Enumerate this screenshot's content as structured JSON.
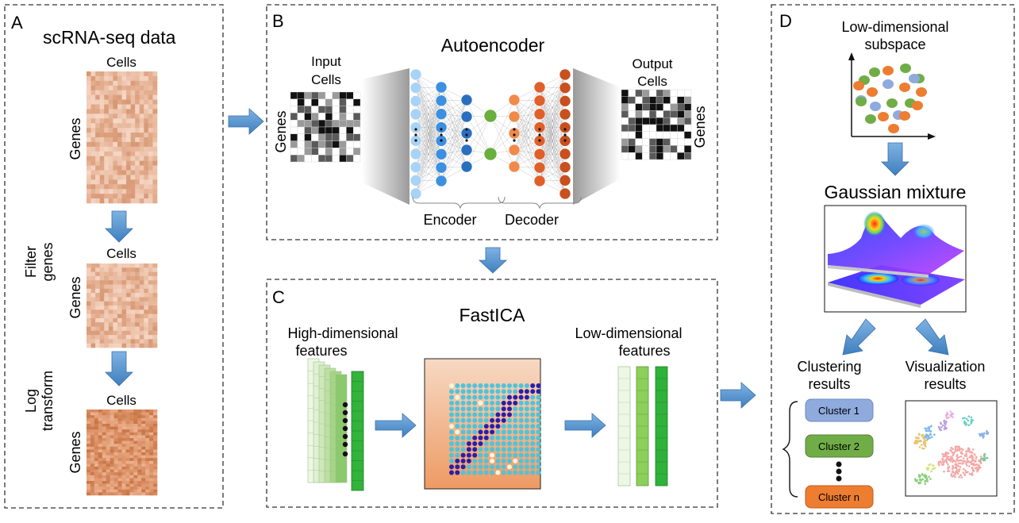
{
  "panelA": {
    "letter": "A",
    "title": "scRNA-seq data",
    "cells_label_1": "Cells",
    "cells_label_2": "Cells",
    "cells_label_3": "Cells",
    "genes_label_1": "Genes",
    "genes_label_2": "Genes",
    "genes_label_3": "Genes",
    "step1_line1": "Filter",
    "step1_line2": "genes",
    "step2_line1": "Log",
    "step2_line2": "transform"
  },
  "panelB": {
    "letter": "B",
    "title": "Autoencoder",
    "input_line1": "Input",
    "input_line2": "Cells",
    "output_line1": "Output",
    "output_line2": "Cells",
    "genes_left": "Genes",
    "genes_right": "Genes",
    "encoder": "Encoder",
    "decoder": "Decoder"
  },
  "panelC": {
    "letter": "C",
    "title": "FastICA",
    "high_line1": "High-dimensional",
    "high_line2": "features",
    "low_line1": "Low-dimensional",
    "low_line2": "features"
  },
  "panelD": {
    "letter": "D",
    "subspace_line1": "Low-dimensional",
    "subspace_line2": "subspace",
    "gmm_title": "Gaussian mixture",
    "clustering_line1": "Clustering",
    "clustering_line2": "results",
    "visualization_line1": "Visualization",
    "visualization_line2": "results",
    "clusters": [
      "Cluster 1",
      "Cluster 2",
      "Cluster n"
    ]
  },
  "colors": {
    "arrow": "#5b9bd5",
    "heatmap": "#e8b08c",
    "encoder_node": "#2f7fd0",
    "decoder_node": "#e8682a",
    "latent_node": "#6aae3e",
    "cluster1": "#8faadc",
    "cluster2": "#70ad47",
    "clustern": "#ed7d31"
  }
}
